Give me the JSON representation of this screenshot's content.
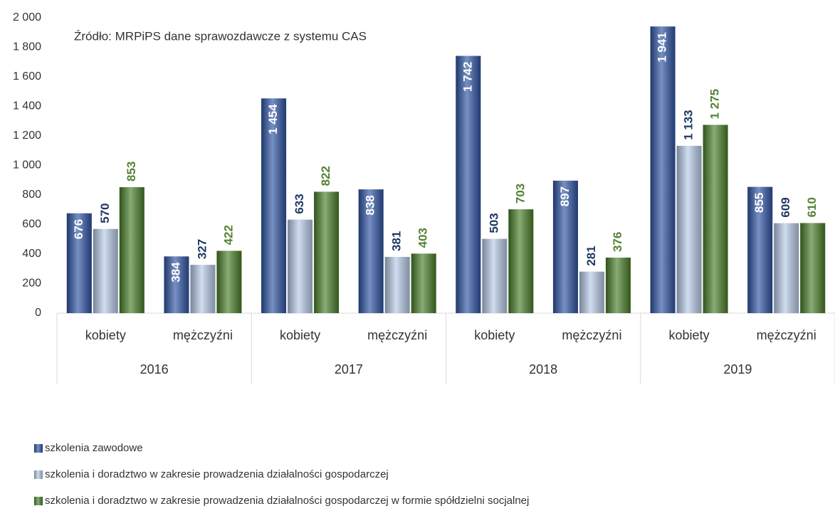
{
  "chart_data": {
    "type": "bar",
    "annotation": "Źródło: MRPiPS dane sprawozdawcze z systemu CAS",
    "categories": [
      "kobiety",
      "mężczyźni",
      "kobiety",
      "mężczyźni",
      "kobiety",
      "mężczyźni",
      "kobiety",
      "mężczyźni"
    ],
    "category_groups": [
      "2016",
      "2017",
      "2018",
      "2019"
    ],
    "series": [
      {
        "name": "szkolenia zawodowe",
        "color": "#2f55a4",
        "label_color": "#ffffff",
        "values": [
          676,
          384,
          1454,
          838,
          1742,
          897,
          1941,
          855
        ],
        "value_labels": [
          "676",
          "384",
          "1 454",
          "838",
          "1 742",
          "897",
          "1 941",
          "855"
        ]
      },
      {
        "name": "szkolenia i doradztwo w zakresie prowadzenia działalności gospodarczej",
        "color": "#b8cbe8",
        "label_color": "#1f3864",
        "values": [
          570,
          327,
          633,
          381,
          503,
          281,
          1133,
          609
        ],
        "value_labels": [
          "570",
          "327",
          "633",
          "381",
          "503",
          "281",
          "1 133",
          "609"
        ]
      },
      {
        "name": "szkolenia i doradztwo w zakresie prowadzenia działalności gospodarczej w formie spółdzielni socjalnej",
        "color": "#4a7f2a",
        "label_color": "#548235",
        "values": [
          853,
          422,
          822,
          403,
          703,
          376,
          1275,
          610
        ],
        "value_labels": [
          "853",
          "422",
          "822",
          "403",
          "703",
          "376",
          "1 275",
          "610"
        ]
      }
    ],
    "ylim": [
      0,
      2000
    ],
    "yticks": [
      0,
      200,
      400,
      600,
      800,
      {
        "value": 1000,
        "label": "1 000"
      },
      {
        "value": 1200,
        "label": "1 200"
      },
      {
        "value": 1400,
        "label": "1 400"
      },
      {
        "value": 1600,
        "label": "1 600"
      },
      {
        "value": 1800,
        "label": "1 800"
      },
      {
        "value": 2000,
        "label": "2 000"
      }
    ],
    "grid": false
  }
}
